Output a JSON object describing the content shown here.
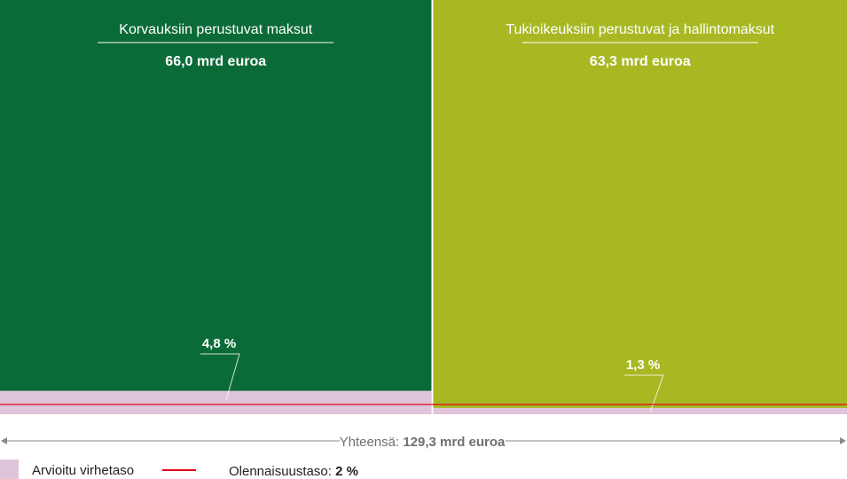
{
  "chart_data": {
    "type": "bar",
    "variant": "marimekko",
    "categories": [
      "Korvauksiin perustuvat maksut",
      "Tukioikeuksiin perustuvat ja hallintomaksut"
    ],
    "amounts": [
      66.0,
      63.3
    ],
    "amount_labels": [
      "66,0 mrd euroa",
      "63,3 mrd euroa"
    ],
    "error_rates": [
      4.8,
      1.3
    ],
    "error_labels": [
      "4,8 %",
      "1,3 %"
    ],
    "materiality_threshold": 2,
    "total_prefix": "Yhteensä:",
    "total_label": "129,3 mrd euroa",
    "legend": {
      "error_label": "Arvioitu virhetaso",
      "threshold_prefix": "Olennaisuustaso:",
      "threshold_value": "2 %",
      "placement": "bottom-left"
    },
    "colors": {
      "category_1": "#0b6b38",
      "category_2": "#a8b823",
      "error": "#dfc4dc",
      "threshold": "#e3001b",
      "axis": "#8a8a8a"
    }
  }
}
